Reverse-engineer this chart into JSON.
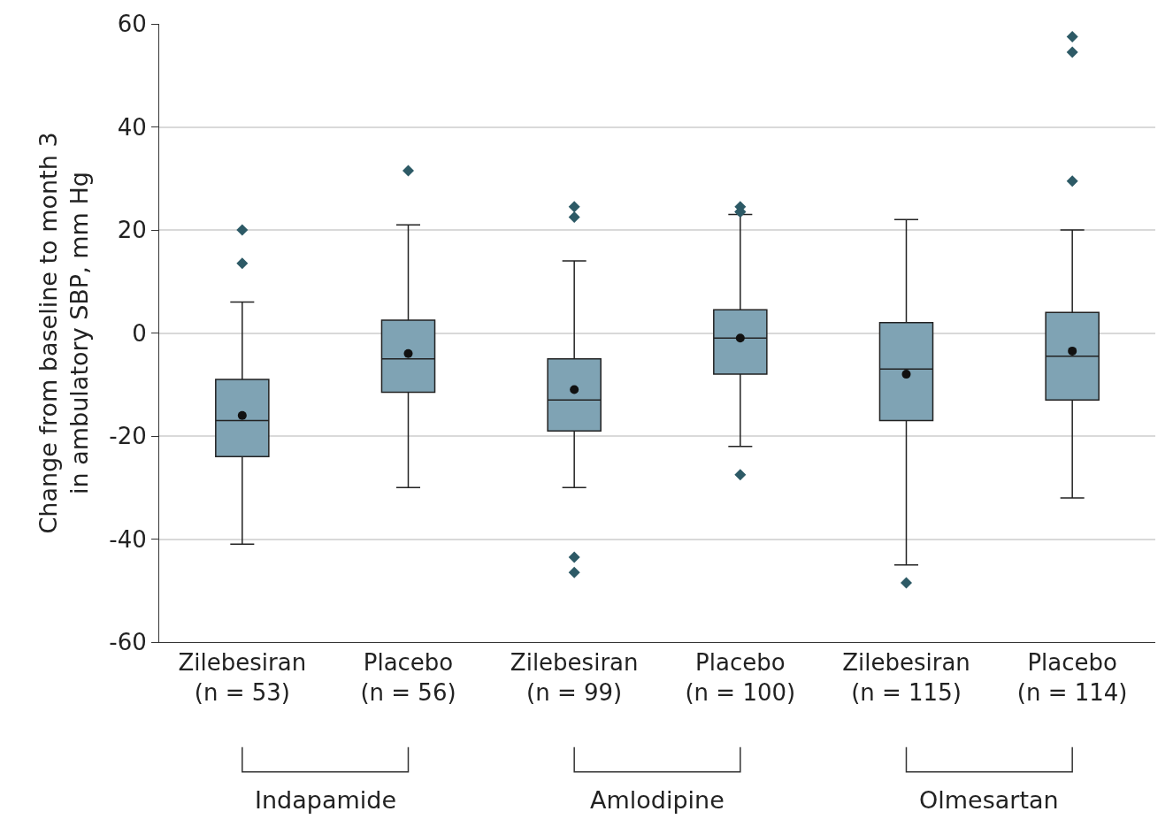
{
  "chart_data": {
    "type": "box",
    "ylabel": "Change from baseline to month 3\nin ambulatory SBP, mm Hg",
    "categories": [
      "Zilebesiran\n(n = 53)",
      "Placebo\n(n = 56)",
      "Zilebesiran\n(n = 99)",
      "Placebo\n(n = 100)",
      "Zilebesiran\n(n = 115)",
      "Placebo\n(n = 114)"
    ],
    "boxes": [
      {
        "low": -41,
        "q1": -24,
        "median": -17,
        "q3": -9,
        "high": 6,
        "mean": -16,
        "outliers": [
          20,
          13.5
        ]
      },
      {
        "low": -30,
        "q1": -11.5,
        "median": -5,
        "q3": 2.5,
        "high": 21,
        "mean": -4,
        "outliers": [
          31.5
        ]
      },
      {
        "low": -30,
        "q1": -19,
        "median": -13,
        "q3": -5,
        "high": 14,
        "mean": -11,
        "outliers": [
          22.5,
          24.5,
          -43.5,
          -46.5
        ]
      },
      {
        "low": -22,
        "q1": -8,
        "median": -1,
        "q3": 4.5,
        "high": 23,
        "mean": -1,
        "outliers": [
          24.5,
          23.5,
          23.5,
          -27.5
        ]
      },
      {
        "low": -45,
        "q1": -17,
        "median": -7,
        "q3": 2,
        "high": 22,
        "mean": -8,
        "outliers": [
          -48.5
        ]
      },
      {
        "low": -32,
        "q1": -13,
        "median": -4.5,
        "q3": 4,
        "high": 20,
        "mean": -3.5,
        "outliers": [
          57.5,
          54.5,
          29.5
        ]
      }
    ],
    "color": "#7fa3b4",
    "ylim": [
      -60,
      60
    ],
    "yticks": [
      -60,
      -40,
      -20,
      0,
      20,
      40,
      60
    ],
    "grid": "y",
    "annotations": [
      "Indapamide",
      "Amlodipine",
      "Olmesartan"
    ]
  }
}
